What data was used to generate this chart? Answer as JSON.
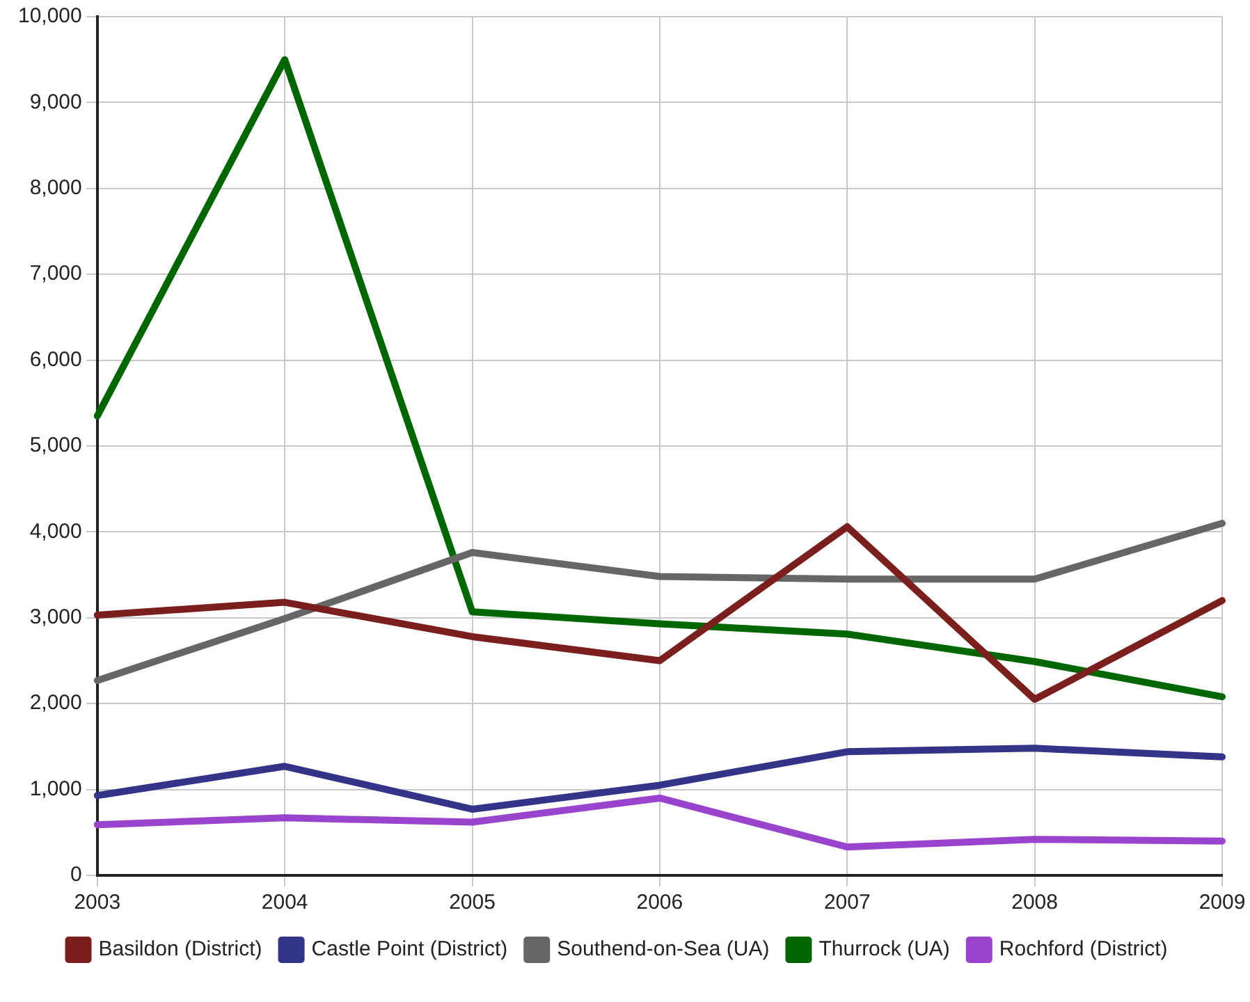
{
  "chart_data": {
    "type": "line",
    "categories": [
      "2003",
      "2004",
      "2005",
      "2006",
      "2007",
      "2008",
      "2009"
    ],
    "series": [
      {
        "name": "Basildon (District)",
        "color": "#7a1e1e",
        "values": [
          3030,
          3180,
          2780,
          2500,
          4060,
          2050,
          3200
        ]
      },
      {
        "name": "Castle Point (District)",
        "color": "#333388",
        "values": [
          930,
          1270,
          770,
          1050,
          1440,
          1480,
          1380
        ]
      },
      {
        "name": "Southend-on-Sea (UA)",
        "color": "#666666",
        "values": [
          2270,
          2990,
          3760,
          3480,
          3450,
          3450,
          4100
        ]
      },
      {
        "name": "Thurrock (UA)",
        "color": "#006600",
        "values": [
          5350,
          9500,
          3070,
          2930,
          2810,
          2490,
          2080
        ]
      },
      {
        "name": "Rochford (District)",
        "color": "#9944cc",
        "values": [
          590,
          670,
          620,
          900,
          330,
          420,
          400
        ]
      }
    ],
    "ylim": [
      0,
      10000
    ],
    "yticks": [
      0,
      {
        "value": 1000,
        "label": "1,000"
      },
      {
        "value": 2000,
        "label": "2,000"
      },
      {
        "value": 3000,
        "label": "3,000"
      },
      {
        "value": 4000,
        "label": "4,000"
      },
      {
        "value": 5000,
        "label": "5,000"
      },
      {
        "value": 6000,
        "label": "6,000"
      },
      {
        "value": 7000,
        "label": "7,000"
      },
      {
        "value": 8000,
        "label": "8,000"
      },
      {
        "value": 9000,
        "label": "9,000"
      },
      {
        "value": 10000,
        "label": "10,000"
      }
    ],
    "grid": true,
    "legend": "bottom",
    "marker": "none",
    "line_style": "solid"
  }
}
